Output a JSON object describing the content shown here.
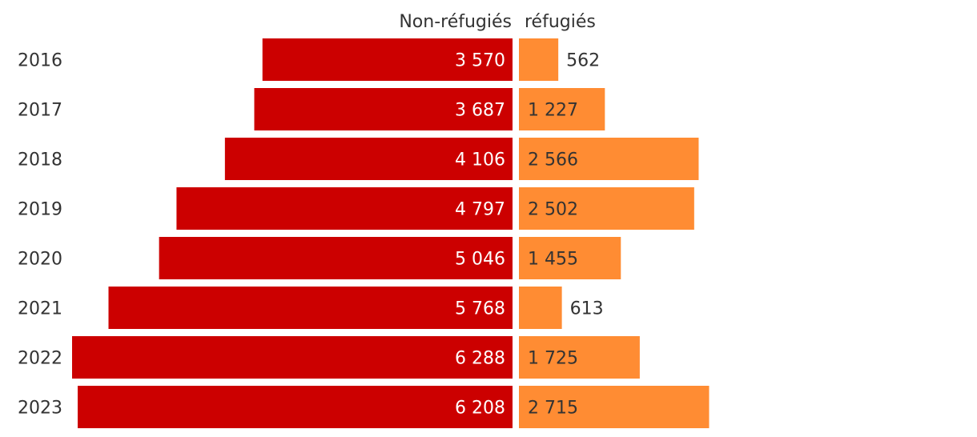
{
  "chart_data": {
    "type": "bar",
    "orientation": "horizontal",
    "layout": "diverging",
    "categories": [
      "2016",
      "2017",
      "2018",
      "2019",
      "2020",
      "2021",
      "2022",
      "2023"
    ],
    "series": [
      {
        "name": "Non-réfugiés",
        "color": "#cc0000",
        "values": [
          3570,
          3687,
          4106,
          4797,
          5046,
          5768,
          6288,
          6208
        ],
        "labels": [
          "3 570",
          "3 687",
          "4 106",
          "4 797",
          "5 046",
          "5 768",
          "6 288",
          "6 208"
        ]
      },
      {
        "name": "réfugiés",
        "color": "#ff8c33",
        "values": [
          562,
          1227,
          2566,
          2502,
          1455,
          613,
          1725,
          2715
        ],
        "labels": [
          "562",
          "1 227",
          "2 566",
          "2 502",
          "1 455",
          "613",
          "1 725",
          "2 715"
        ]
      }
    ],
    "title": "",
    "xlabel": "",
    "ylabel": "",
    "grid": false,
    "legend": "top-center"
  }
}
